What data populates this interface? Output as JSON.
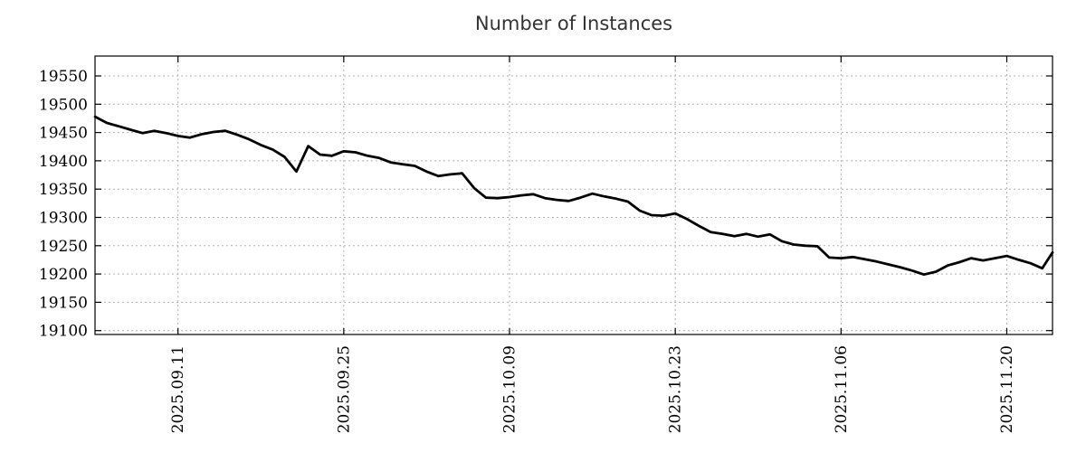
{
  "chart_data": {
    "type": "line",
    "title": "Number of Instances",
    "legend": "none",
    "grid": "dashed",
    "line_color": "#000000",
    "grid_color": "#b0b0b0",
    "border_color": "#000000",
    "title_color": "#333333",
    "background_color": "#ffffff",
    "ylim": [
      19093,
      19585
    ],
    "y_ticks": [
      19550,
      19500,
      19450,
      19400,
      19350,
      19300,
      19250,
      19200,
      19150,
      19100
    ],
    "x_tick_labels": [
      "2025.09.11",
      "2025.09.25",
      "2025.10.09",
      "2025.10.23",
      "2025.11.06",
      "2025.11.20"
    ],
    "dates": [
      "2025.09.04",
      "2025.09.05",
      "2025.09.06",
      "2025.09.07",
      "2025.09.08",
      "2025.09.09",
      "2025.09.10",
      "2025.09.11",
      "2025.09.12",
      "2025.09.13",
      "2025.09.14",
      "2025.09.15",
      "2025.09.16",
      "2025.09.17",
      "2025.09.18",
      "2025.09.19",
      "2025.09.20",
      "2025.09.21",
      "2025.09.22",
      "2025.09.23",
      "2025.09.24",
      "2025.09.25",
      "2025.09.26",
      "2025.09.27",
      "2025.09.28",
      "2025.09.29",
      "2025.09.30",
      "2025.10.01",
      "2025.10.02",
      "2025.10.03",
      "2025.10.04",
      "2025.10.05",
      "2025.10.06",
      "2025.10.07",
      "2025.10.08",
      "2025.10.09",
      "2025.10.10",
      "2025.10.11",
      "2025.10.12",
      "2025.10.13",
      "2025.10.14",
      "2025.10.15",
      "2025.10.16",
      "2025.10.17",
      "2025.10.18",
      "2025.10.19",
      "2025.10.20",
      "2025.10.21",
      "2025.10.22",
      "2025.10.23",
      "2025.10.24",
      "2025.10.25",
      "2025.10.26",
      "2025.10.27",
      "2025.10.28",
      "2025.10.29",
      "2025.10.30",
      "2025.10.31",
      "2025.11.01",
      "2025.11.02",
      "2025.11.03",
      "2025.11.04",
      "2025.11.05",
      "2025.11.06",
      "2025.11.07",
      "2025.11.08",
      "2025.11.09",
      "2025.11.10",
      "2025.11.11",
      "2025.11.12",
      "2025.11.13",
      "2025.11.14",
      "2025.11.15",
      "2025.11.16",
      "2025.11.17",
      "2025.11.18",
      "2025.11.19",
      "2025.11.20",
      "2025.11.21",
      "2025.11.22",
      "2025.11.23",
      "2025.11.24"
    ],
    "series": [
      {
        "name": "instances",
        "values": [
          19478,
          19467,
          19461,
          19455,
          19449,
          19453,
          19449,
          19444,
          19441,
          19447,
          19451,
          19453,
          19446,
          19438,
          19428,
          19420,
          19407,
          19381,
          19426,
          19411,
          19409,
          19417,
          19415,
          19409,
          19405,
          19397,
          19394,
          19391,
          19381,
          19373,
          19376,
          19378,
          19352,
          19335,
          19334,
          19336,
          19339,
          19341,
          19334,
          19331,
          19329,
          19335,
          19342,
          19337,
          19333,
          19328,
          19312,
          19304,
          19303,
          19307,
          19297,
          19285,
          19274,
          19271,
          19267,
          19271,
          19266,
          19270,
          19258,
          19252,
          19250,
          19249,
          19229,
          19228,
          19230,
          19226,
          19222,
          19217,
          19212,
          19206,
          19199,
          19204,
          19215,
          19221,
          19228,
          19224,
          19228,
          19232,
          19225,
          19219,
          19210,
          19238
        ]
      }
    ]
  }
}
